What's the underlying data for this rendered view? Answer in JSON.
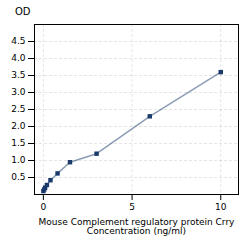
{
  "chart_data": {
    "type": "line",
    "x": [
      0,
      0.05,
      0.1,
      0.2,
      0.4,
      0.8,
      1.5,
      3,
      6,
      10
    ],
    "values": [
      0.1,
      0.15,
      0.2,
      0.28,
      0.42,
      0.62,
      0.95,
      1.2,
      2.3,
      3.6
    ],
    "color": "#1a3a6b",
    "marker": "square",
    "xlabel": "Mouse Complement regulatory protein Crry\nConcentration (ng/ml)",
    "ylabel": "OD",
    "xlim": [
      -0.5,
      11
    ],
    "ylim": [
      0,
      5.0
    ],
    "xticks": [
      0,
      5,
      10
    ],
    "yticks": [
      0.5,
      {
        "value": 1.0,
        "label": "1.0"
      },
      1.5,
      {
        "value": 2.0,
        "label": "2.0"
      },
      2.5,
      {
        "value": 3.0,
        "label": "3.0"
      },
      3.5,
      {
        "value": 4.0,
        "label": "4.0"
      },
      4.5
    ],
    "grid": true
  }
}
